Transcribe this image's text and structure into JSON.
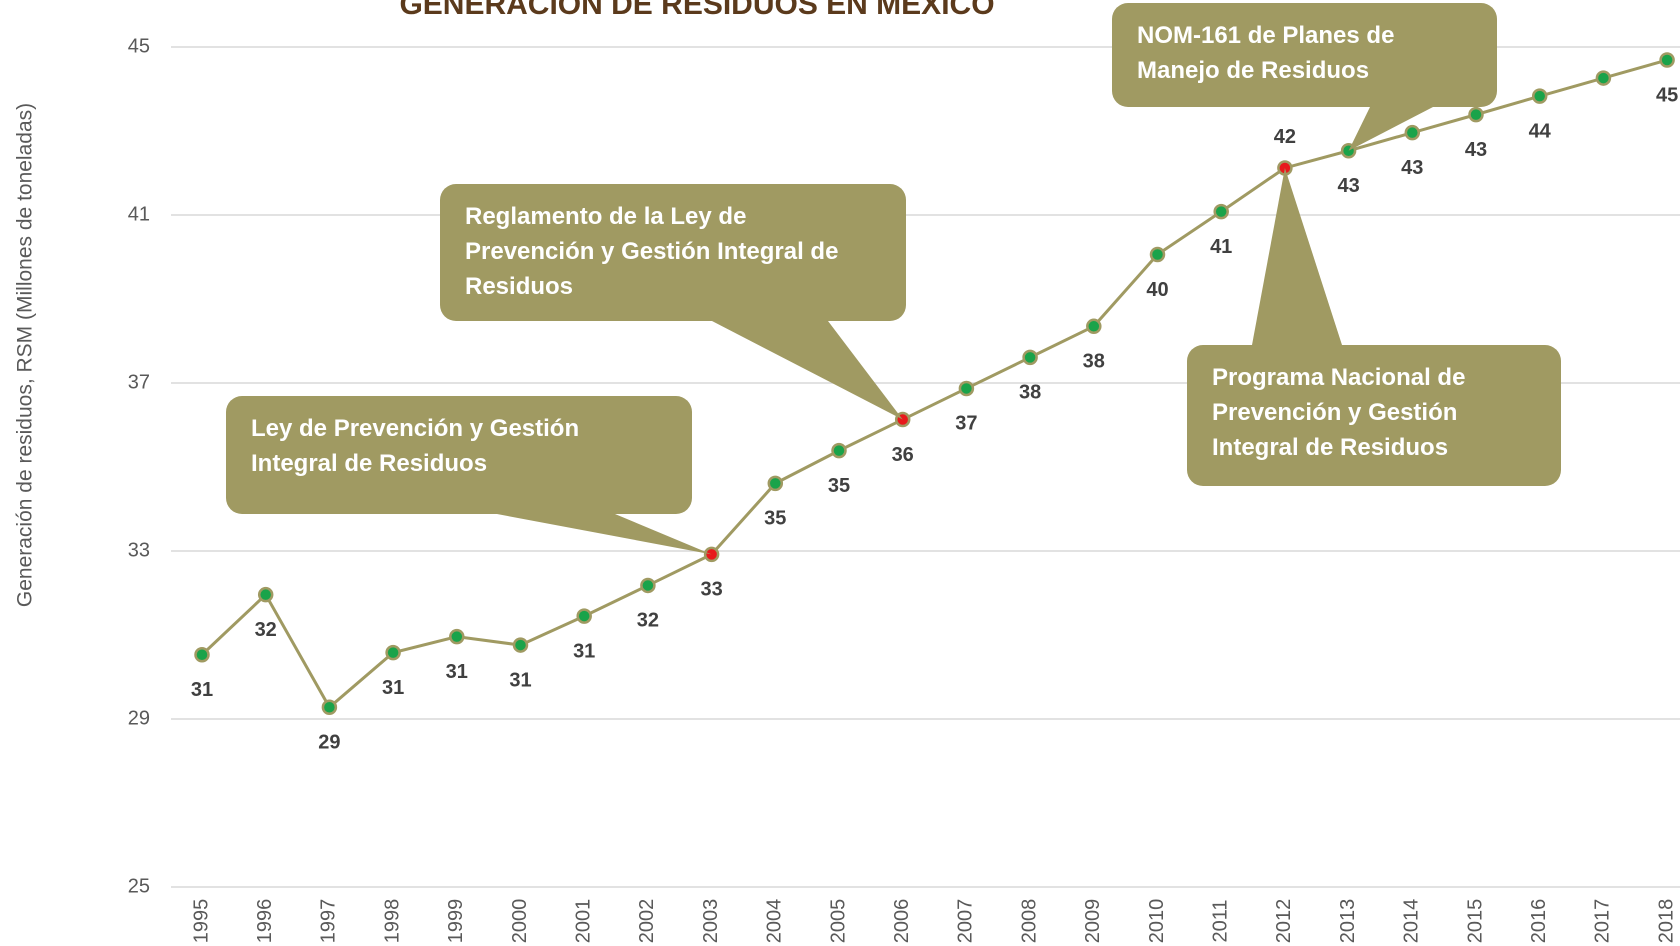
{
  "chart_data": {
    "type": "line",
    "title": "GENERACIÓN DE RESIDUOS EN MÉXICO",
    "y_label": "Generación de residuos, RSM (Millones de toneladas)",
    "categories": [
      "1995",
      "1996",
      "1997",
      "1998",
      "1999",
      "2000",
      "2001",
      "2002",
      "2003",
      "2004",
      "2005",
      "2006",
      "2007",
      "2008",
      "2009",
      "2010",
      "2011",
      "2012",
      "2013",
      "2014",
      "2015",
      "2016",
      "2017",
      "2018"
    ],
    "series": [
      {
        "name": "RSM",
        "color": "#a09a62",
        "values": [
          30.53,
          31.96,
          29.28,
          30.58,
          30.96,
          30.76,
          31.45,
          32.18,
          32.92,
          34.61,
          35.39,
          36.13,
          36.87,
          37.61,
          38.35,
          40.06,
          41.08,
          42.12,
          42.53,
          42.96,
          43.39,
          43.83,
          44.26,
          44.69
        ],
        "value_labels": [
          "31",
          "32",
          "29",
          "31",
          "31",
          "31",
          "31",
          "32",
          "33",
          "35",
          "35",
          "36",
          "37",
          "38",
          "38",
          "40",
          "41",
          "42",
          "43",
          "43",
          "43",
          "44",
          null,
          "45"
        ],
        "marker_colors": [
          "#1aa34a",
          "#1aa34a",
          "#1aa34a",
          "#1aa34a",
          "#1aa34a",
          "#1aa34a",
          "#1aa34a",
          "#1aa34a",
          "#e8191c",
          "#1aa34a",
          "#1aa34a",
          "#e8191c",
          "#1aa34a",
          "#1aa34a",
          "#1aa34a",
          "#1aa34a",
          "#1aa34a",
          "#e8191c",
          "#1aa34a",
          "#1aa34a",
          "#1aa34a",
          "#1aa34a",
          "#1aa34a",
          "#1aa34a"
        ]
      }
    ],
    "ylim": [
      25,
      45
    ],
    "yticks": [
      25,
      29,
      33,
      37,
      41,
      45
    ],
    "grid": true,
    "annotations": [
      {
        "x": "2003",
        "lines": [
          "Ley de Prevención y Gestión",
          "Integral de Residuos"
        ]
      },
      {
        "x": "2006",
        "lines": [
          "Reglamento de la Ley de",
          "Prevención y Gestión Integral de",
          "Residuos"
        ]
      },
      {
        "x": "2013",
        "lines": [
          "NOM-161 de Planes de",
          "Manejo de Residuos"
        ]
      },
      {
        "x": "2012",
        "lines": [
          "Programa Nacional de",
          "Prevención y Gestión",
          "Integral de Residuos"
        ]
      }
    ],
    "annotation_color": "#a09a62"
  }
}
